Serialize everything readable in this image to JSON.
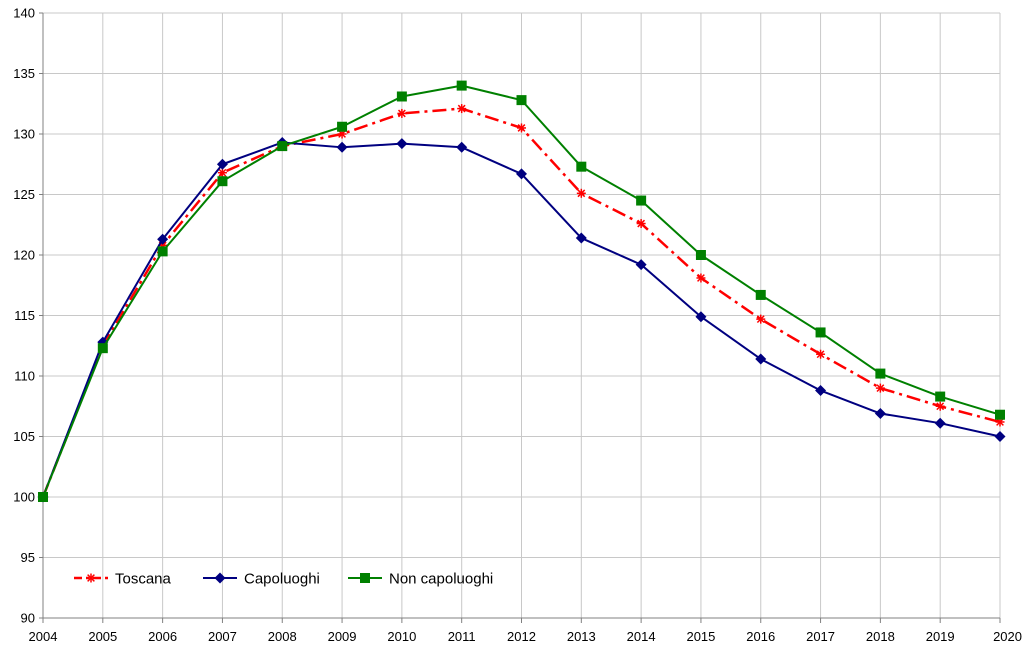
{
  "chart_data": {
    "type": "line",
    "title": "",
    "xlabel": "",
    "ylabel": "",
    "x": [
      "2004",
      "2005",
      "2006",
      "2007",
      "2008",
      "2009",
      "2010",
      "2011",
      "2012",
      "2013",
      "2014",
      "2015",
      "2016",
      "2017",
      "2018",
      "2019",
      "2020"
    ],
    "ylim": [
      90,
      140
    ],
    "yticks": [
      90,
      95,
      100,
      105,
      110,
      115,
      120,
      125,
      130,
      135,
      140
    ],
    "grid": true,
    "legend_position": "bottom-left",
    "series": [
      {
        "name": "Toscana",
        "color": "#ff0000",
        "style": "dash-dot",
        "marker": "star",
        "values": [
          100,
          112.5,
          120.8,
          126.8,
          129.0,
          130.0,
          131.7,
          132.1,
          130.5,
          125.1,
          122.6,
          118.1,
          114.7,
          111.8,
          109.0,
          107.5,
          106.2
        ]
      },
      {
        "name": "Capoluoghi",
        "color": "#000080",
        "style": "solid",
        "marker": "diamond",
        "values": [
          100,
          112.8,
          121.3,
          127.5,
          129.3,
          128.9,
          129.2,
          128.9,
          126.7,
          121.4,
          119.2,
          114.9,
          111.4,
          108.8,
          106.9,
          106.1,
          105.0
        ]
      },
      {
        "name": "Non capoluoghi",
        "color": "#008000",
        "style": "solid",
        "marker": "square",
        "values": [
          100,
          112.3,
          120.3,
          126.1,
          129.0,
          130.6,
          133.1,
          134.0,
          132.8,
          127.3,
          124.5,
          120.0,
          116.7,
          113.6,
          110.2,
          108.3,
          106.8
        ]
      }
    ]
  }
}
